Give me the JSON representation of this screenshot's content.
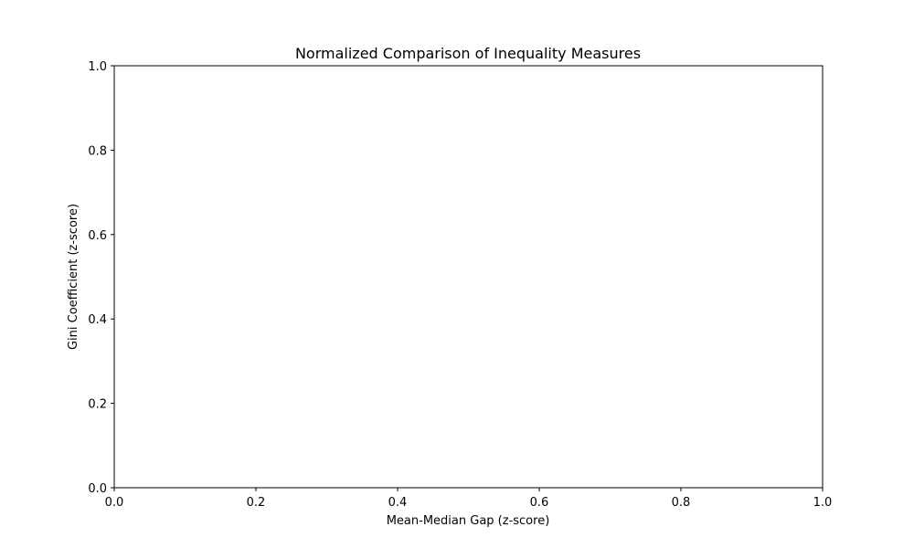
{
  "chart_data": {
    "type": "scatter",
    "title": "Normalized Comparison of Inequality Measures",
    "xlabel": "Mean-Median Gap (z-score)",
    "ylabel": "Gini Coefficient (z-score)",
    "xlim": [
      0.0,
      1.0
    ],
    "ylim": [
      0.0,
      1.0
    ],
    "xticks": [
      "0.0",
      "0.2",
      "0.4",
      "0.6",
      "0.8",
      "1.0"
    ],
    "yticks": [
      "0.0",
      "0.2",
      "0.4",
      "0.6",
      "0.8",
      "1.0"
    ],
    "grid": false,
    "series": []
  }
}
